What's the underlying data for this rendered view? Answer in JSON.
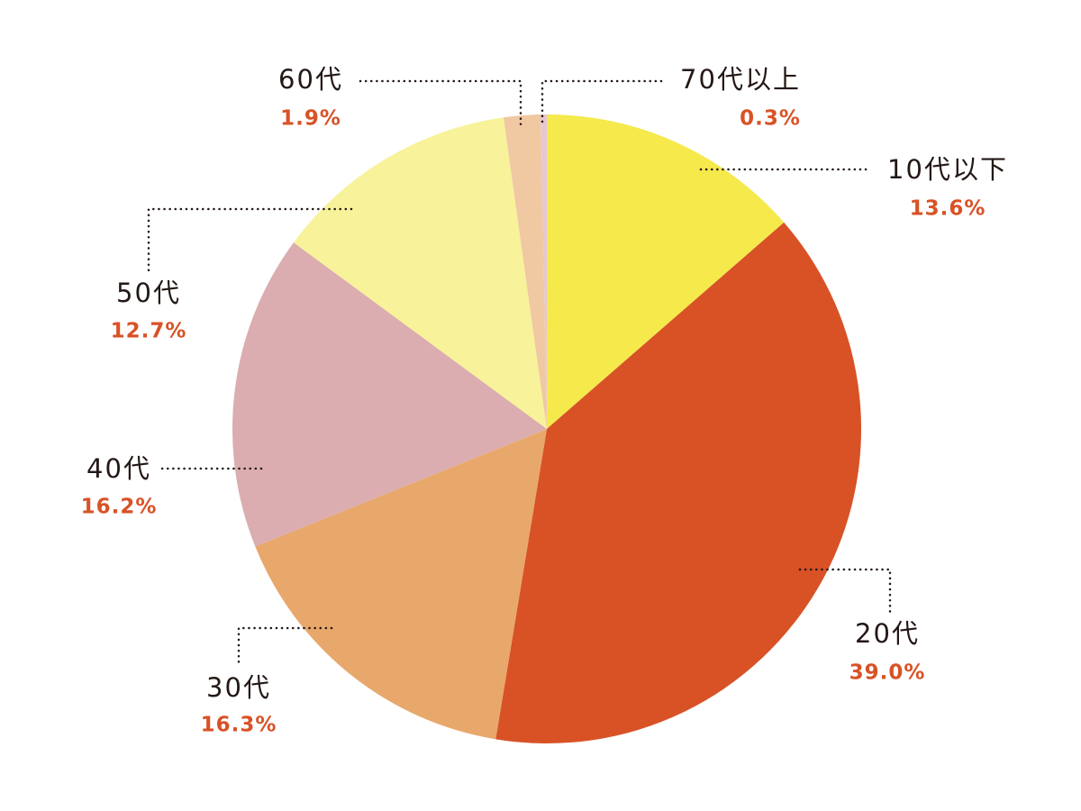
{
  "chart_data": {
    "type": "pie",
    "categories": [
      "10代以下",
      "20代",
      "30代",
      "40代",
      "50代",
      "60代",
      "70代以上"
    ],
    "values": [
      13.6,
      39.0,
      16.3,
      16.2,
      12.7,
      1.9,
      0.3
    ],
    "value_labels": [
      "13.6%",
      "39.0%",
      "16.3%",
      "16.2%",
      "12.7%",
      "1.9%",
      "0.3%"
    ],
    "colors": [
      "#f5e94c",
      "#d85226",
      "#e8a86b",
      "#dbadb0",
      "#f8f29a",
      "#f0c8a2",
      "#e6c6d6"
    ]
  }
}
